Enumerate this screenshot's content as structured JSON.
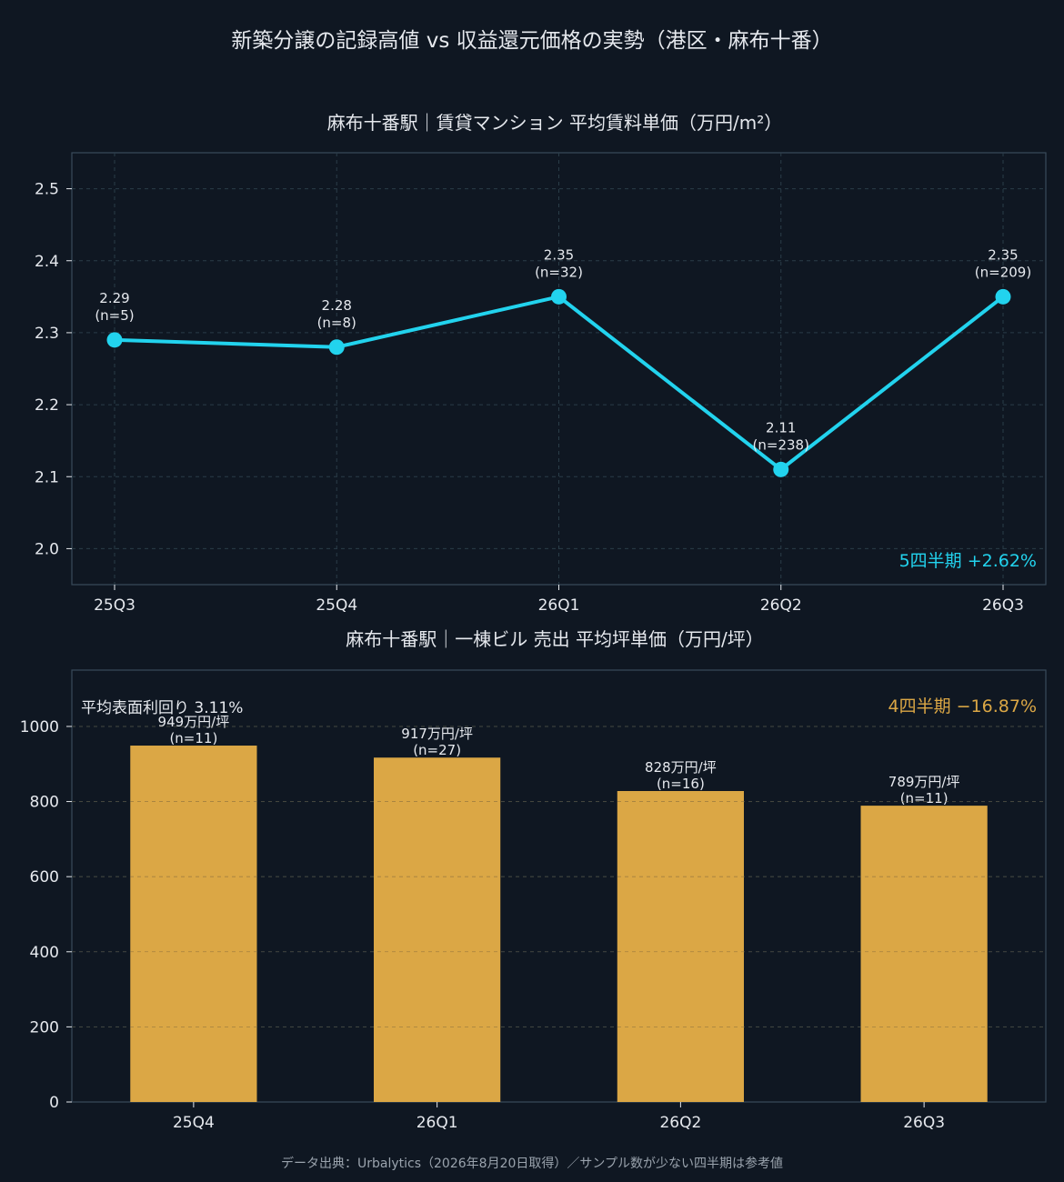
{
  "title": "新築分譲の記録高値 vs 収益還元価格の実勢（港区・麻布十番）",
  "footer": "データ出典：Urbalytics（2026年8月20日取得）／サンプル数が少ない四半期は参考値",
  "colors": {
    "background": "#0f1722",
    "line": "#22d3ee",
    "bar": "#dba745",
    "text": "#e6e9ee",
    "axis": "#3a4a5a",
    "grid": "#2a3d48",
    "footer": "#9aa3ad"
  },
  "chart_data": [
    {
      "type": "line",
      "title": "麻布十番駅｜賃貸マンション 平均賃料単価（万円/m²）",
      "categories": [
        "25Q3",
        "25Q4",
        "26Q1",
        "26Q2",
        "26Q3"
      ],
      "values": [
        2.29,
        2.28,
        2.35,
        2.11,
        2.35
      ],
      "data_labels": [
        "2.29",
        "2.28",
        "2.35",
        "2.11",
        "2.35"
      ],
      "sample_labels": [
        "(n=5)",
        "(n=8)",
        "(n=32)",
        "(n=238)",
        "(n=209)"
      ],
      "ylim": [
        1.95,
        2.55
      ],
      "yticks": [
        2.0,
        2.1,
        2.2,
        2.3,
        2.4,
        2.5
      ],
      "ytick_labels": [
        "2.0",
        "2.1",
        "2.2",
        "2.3",
        "2.4",
        "2.5"
      ],
      "grid": true,
      "annotation": "5四半期 +2.62%"
    },
    {
      "type": "bar",
      "title": "麻布十番駅｜一棟ビル 売出 平均坪単価（万円/坪）",
      "categories": [
        "25Q4",
        "26Q1",
        "26Q2",
        "26Q3"
      ],
      "values": [
        949,
        917,
        828,
        789
      ],
      "data_labels": [
        "949万円/坪",
        "917万円/坪",
        "828万円/坪",
        "789万円/坪"
      ],
      "sample_labels": [
        "(n=11)",
        "(n=27)",
        "(n=16)",
        "(n=11)"
      ],
      "ylim": [
        0,
        1150
      ],
      "yticks": [
        0,
        200,
        400,
        600,
        800,
        1000
      ],
      "ytick_labels": [
        "0",
        "200",
        "400",
        "600",
        "800",
        "1000"
      ],
      "grid": true,
      "annotation": "4四半期 −16.87%",
      "note": "平均表面利回り 3.11%"
    }
  ]
}
